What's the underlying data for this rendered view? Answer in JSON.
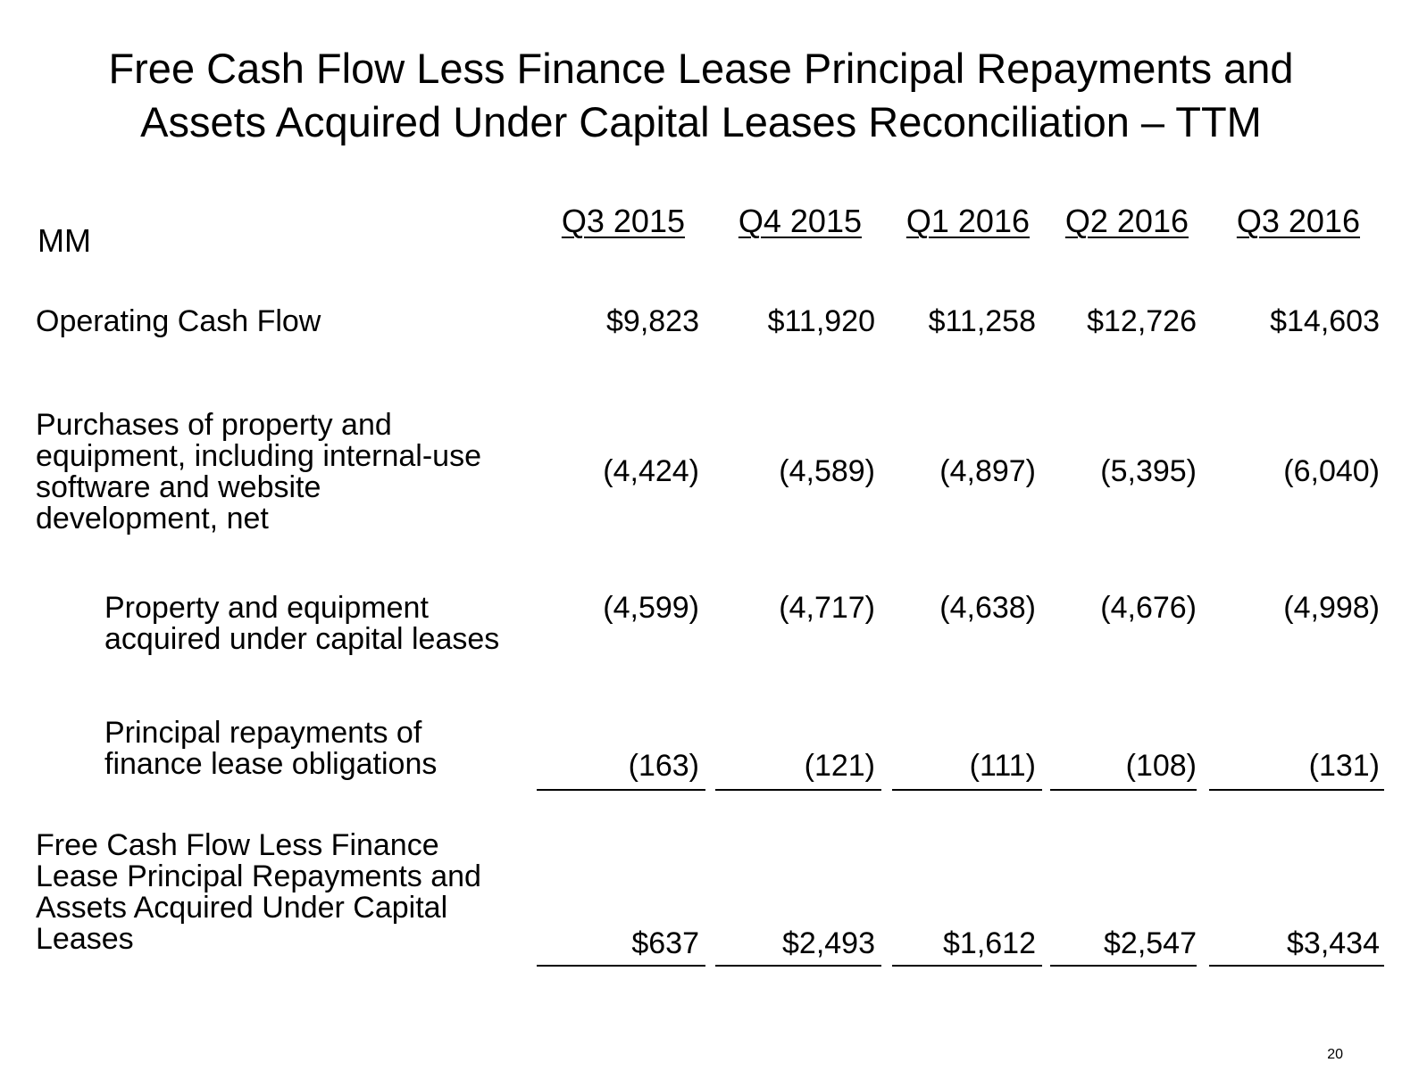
{
  "header": {
    "title": [
      "Free Cash Flow Less Finance Lease Principal Repayments and",
      "Assets Acquired Under Capital Leases Reconciliation – TTM"
    ]
  },
  "table": {
    "unit": "MM",
    "columns": [
      "Q3 2015",
      "Q4 2015",
      "Q1 2016",
      "Q2 2016",
      "Q3 2016"
    ],
    "rows": [
      {
        "label": [
          "Operating Cash Flow"
        ],
        "values": [
          "$9,823",
          "$11,920",
          "$11,258",
          "$12,726",
          "$14,603"
        ]
      },
      {
        "label": [
          "Purchases of property and",
          "equipment, including internal-use",
          "software and website",
          "development, net"
        ],
        "values": [
          "(4,424)",
          "(4,589)",
          "(4,897)",
          "(5,395)",
          "(6,040)"
        ]
      },
      {
        "label": [
          "Property and equipment",
          "acquired under capital leases"
        ],
        "values": [
          "(4,599)",
          "(4,717)",
          "(4,638)",
          "(4,676)",
          "(4,998)"
        ]
      },
      {
        "label": [
          "Principal repayments of",
          "finance lease obligations"
        ],
        "values": [
          "(163)",
          "(121)",
          "(111)",
          "(108)",
          "(131)"
        ]
      },
      {
        "label": [
          "Free Cash Flow Less Finance",
          "Lease Principal Repayments and",
          "Assets Acquired Under Capital",
          "Leases"
        ],
        "values": [
          "$637",
          "$2,493",
          "$1,612",
          "$2,547",
          "$3,434"
        ]
      }
    ]
  },
  "footer": {
    "page_number": "20"
  }
}
